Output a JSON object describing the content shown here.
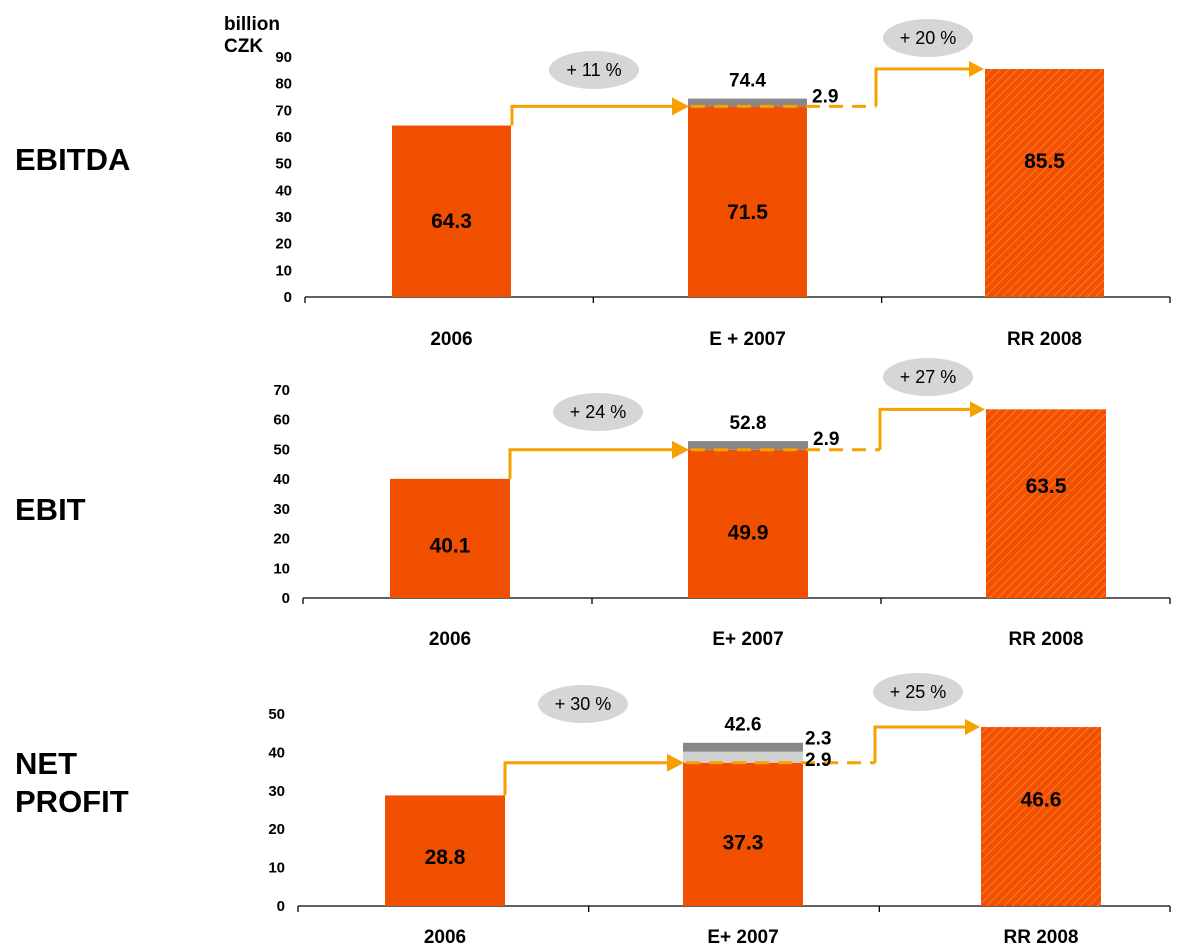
{
  "unit_label": [
    "billion",
    "CZK"
  ],
  "colors": {
    "bar": "#f05000",
    "gray_segment": "#888888",
    "light_segment": "#d0d0d0",
    "arrow": "#f7a000",
    "pct_bubble": "#d6d6d6",
    "hatch": "#ff7a2a"
  },
  "chart_data": [
    {
      "type": "bar",
      "row_label": [
        "EBITDA"
      ],
      "categories": [
        "2006",
        "E + 2007",
        "RR 2008"
      ],
      "values": [
        64.3,
        71.5,
        85.5
      ],
      "ylim": [
        0,
        90
      ],
      "yticks": [
        0,
        10,
        20,
        30,
        40,
        50,
        60,
        70,
        80,
        90
      ],
      "stack_on_middle": [
        {
          "value": 2.9,
          "label": "2.9"
        }
      ],
      "middle_total": 74.4,
      "growth": [
        "+ 11 %",
        "+ 20 %"
      ],
      "hatched_last": true
    },
    {
      "type": "bar",
      "row_label": [
        "EBIT"
      ],
      "categories": [
        "2006",
        "E+ 2007",
        "RR 2008"
      ],
      "values": [
        40.1,
        49.9,
        63.5
      ],
      "ylim": [
        0,
        70
      ],
      "yticks": [
        0,
        10,
        20,
        30,
        40,
        50,
        60,
        70
      ],
      "stack_on_middle": [
        {
          "value": 2.9,
          "label": "2.9"
        }
      ],
      "middle_total": 52.8,
      "growth": [
        "+ 24 %",
        "+ 27 %"
      ],
      "hatched_last": true
    },
    {
      "type": "bar",
      "row_label": [
        "NET",
        "PROFIT"
      ],
      "categories": [
        "2006",
        "E+ 2007",
        "RR 2008"
      ],
      "values": [
        28.8,
        37.3,
        46.6
      ],
      "ylim": [
        0,
        50
      ],
      "yticks": [
        0,
        10,
        20,
        30,
        40,
        50
      ],
      "stack_on_middle": [
        {
          "value": 2.9,
          "label": "2.9"
        },
        {
          "value": 2.3,
          "label": "2.3"
        }
      ],
      "middle_total": 42.6,
      "growth": [
        "+ 30 %",
        "+ 25 %"
      ],
      "hatched_last": true
    }
  ]
}
